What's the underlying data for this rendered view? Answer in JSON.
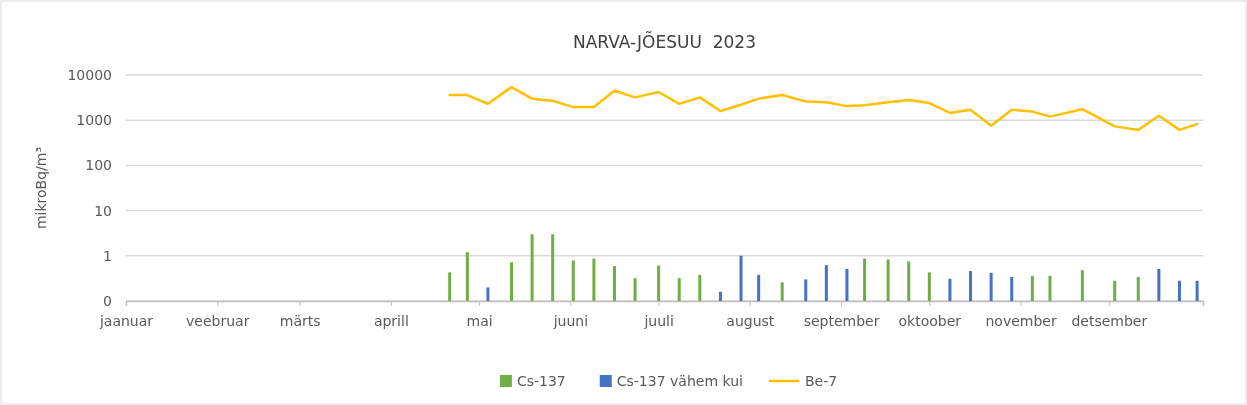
{
  "chart_data": {
    "type": "bar",
    "title": "NARVA-JÕESUU  2023",
    "ylabel": "mikroBq/m³",
    "x": [
      "2023-04-21",
      "2023-04-27",
      "2023-05-04",
      "2023-05-12",
      "2023-05-19",
      "2023-05-26",
      "2023-06-02",
      "2023-06-09",
      "2023-06-16",
      "2023-06-23",
      "2023-07-01",
      "2023-07-08",
      "2023-07-15",
      "2023-07-22",
      "2023-07-29",
      "2023-08-04",
      "2023-08-12",
      "2023-08-20",
      "2023-08-27",
      "2023-09-03",
      "2023-09-09",
      "2023-09-17",
      "2023-09-24",
      "2023-10-01",
      "2023-10-08",
      "2023-10-15",
      "2023-10-22",
      "2023-10-29",
      "2023-11-05",
      "2023-11-11",
      "2023-11-22",
      "2023-12-03",
      "2023-12-11",
      "2023-12-18",
      "2023-12-25",
      "2023-12-31"
    ],
    "series": [
      {
        "name": "Cs-137",
        "color": "#70ad47",
        "values": [
          0.43,
          1.2,
          null,
          0.72,
          3.0,
          3.0,
          0.79,
          0.87,
          0.59,
          0.32,
          0.61,
          0.32,
          0.38,
          null,
          null,
          null,
          0.26,
          null,
          null,
          null,
          0.87,
          0.83,
          0.75,
          0.43,
          null,
          null,
          null,
          null,
          0.36,
          0.36,
          0.48,
          0.28,
          0.34,
          null,
          null,
          null
        ]
      },
      {
        "name": "Cs-137 vähem kui",
        "color": "#4472c4",
        "values": [
          null,
          null,
          0.2,
          null,
          null,
          null,
          null,
          null,
          null,
          null,
          null,
          null,
          null,
          0.16,
          1.0,
          0.38,
          null,
          0.3,
          0.62,
          0.51,
          null,
          null,
          null,
          null,
          0.31,
          0.46,
          0.42,
          0.34,
          null,
          null,
          null,
          null,
          null,
          0.51,
          0.28,
          0.28
        ]
      },
      {
        "name": "Be-7",
        "type": "line",
        "color": "#ffc000",
        "values": [
          3600,
          3600,
          2300,
          5400,
          3000,
          2700,
          1950,
          1950,
          4500,
          3200,
          4200,
          2300,
          3200,
          1600,
          2200,
          3000,
          3600,
          2600,
          2500,
          2050,
          2150,
          2500,
          2800,
          2400,
          1450,
          1700,
          750,
          1700,
          1550,
          1200,
          1750,
          730,
          610,
          1250,
          610,
          820
        ]
      }
    ],
    "xlim": [
      "2023-01-01",
      "2024-01-02"
    ],
    "xticks": [
      {
        "value": "2023-01-01",
        "label": "jaanuar"
      },
      {
        "value": "2023-02-01",
        "label": "veebruar"
      },
      {
        "value": "2023-03-01",
        "label": "märts"
      },
      {
        "value": "2023-04-01",
        "label": "aprill"
      },
      {
        "value": "2023-05-01",
        "label": "mai"
      },
      {
        "value": "2023-06-01",
        "label": "juuni"
      },
      {
        "value": "2023-07-01",
        "label": "juuli"
      },
      {
        "value": "2023-08-01",
        "label": "august"
      },
      {
        "value": "2023-09-01",
        "label": "september"
      },
      {
        "value": "2023-10-01",
        "label": "oktoober"
      },
      {
        "value": "2023-11-01",
        "label": "november"
      },
      {
        "value": "2023-12-01",
        "label": "detsember"
      }
    ],
    "ylim": [
      0.1,
      10000
    ],
    "yticks": [
      {
        "value": 0.1,
        "label": "0"
      },
      1,
      10,
      100,
      1000,
      10000
    ],
    "log": "y",
    "grid": "y",
    "legend": "bottom"
  }
}
